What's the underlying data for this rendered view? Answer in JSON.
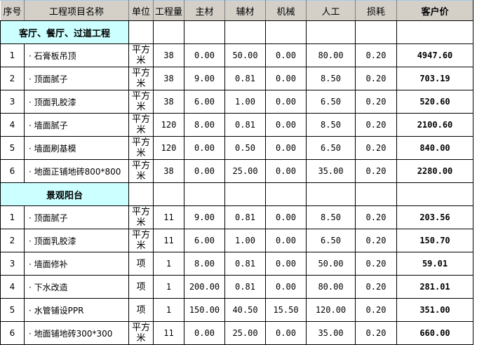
{
  "columns": [
    "序号",
    "工程项目名称",
    "单位",
    "工程量",
    "主材",
    "辅材",
    "机械",
    "人工",
    "损耗",
    "客户价"
  ],
  "sections": [
    {
      "title": "客厅、餐厅、过道工程",
      "rows": [
        [
          "1",
          "· 石膏板吊顶",
          "平方米",
          "38",
          "0.00",
          "50.00",
          "0.00",
          "80.00",
          "0.20",
          "4947.60"
        ],
        [
          "2",
          "· 顶面腻子",
          "平方米",
          "38",
          "9.00",
          "0.81",
          "0.00",
          "8.50",
          "0.20",
          "703.19"
        ],
        [
          "3",
          "· 顶面乳胶漆",
          "平方米",
          "38",
          "6.00",
          "1.00",
          "0.00",
          "6.50",
          "0.20",
          "520.60"
        ],
        [
          "4",
          "· 墙面腻子",
          "平方米",
          "120",
          "8.00",
          "0.81",
          "0.00",
          "8.50",
          "0.20",
          "2100.60"
        ],
        [
          "5",
          "· 墙面刷基模",
          "平方米",
          "120",
          "0.00",
          "0.50",
          "0.00",
          "6.50",
          "0.20",
          "840.00"
        ],
        [
          "6",
          "· 地面正铺地砖800*800",
          "平方米",
          "38",
          "0.00",
          "25.00",
          "0.00",
          "35.00",
          "0.20",
          "2280.00"
        ]
      ]
    },
    {
      "title": "景观阳台",
      "rows": [
        [
          "1",
          "· 顶面腻子",
          "平方米",
          "11",
          "9.00",
          "0.81",
          "0.00",
          "8.50",
          "0.20",
          "203.56"
        ],
        [
          "2",
          "· 顶面乳胶漆",
          "平方米",
          "11",
          "6.00",
          "1.00",
          "0.00",
          "6.50",
          "0.20",
          "150.70"
        ],
        [
          "3",
          "· 墙面修补",
          "项",
          "1",
          "8.00",
          "0.81",
          "0.00",
          "50.00",
          "0.20",
          "59.01"
        ],
        [
          "4",
          "· 下水改造",
          "项",
          "1",
          "200.00",
          "0.81",
          "0.00",
          "80.00",
          "0.20",
          "281.01"
        ],
        [
          "5",
          "· 水管铺设PPR",
          "项",
          "1",
          "150.00",
          "40.50",
          "15.50",
          "120.00",
          "0.20",
          "351.00"
        ],
        [
          "6",
          "· 地面铺地砖300*300",
          "平方米",
          "11",
          "0.00",
          "25.00",
          "0.00",
          "35.00",
          "0.20",
          "660.00"
        ]
      ]
    }
  ]
}
